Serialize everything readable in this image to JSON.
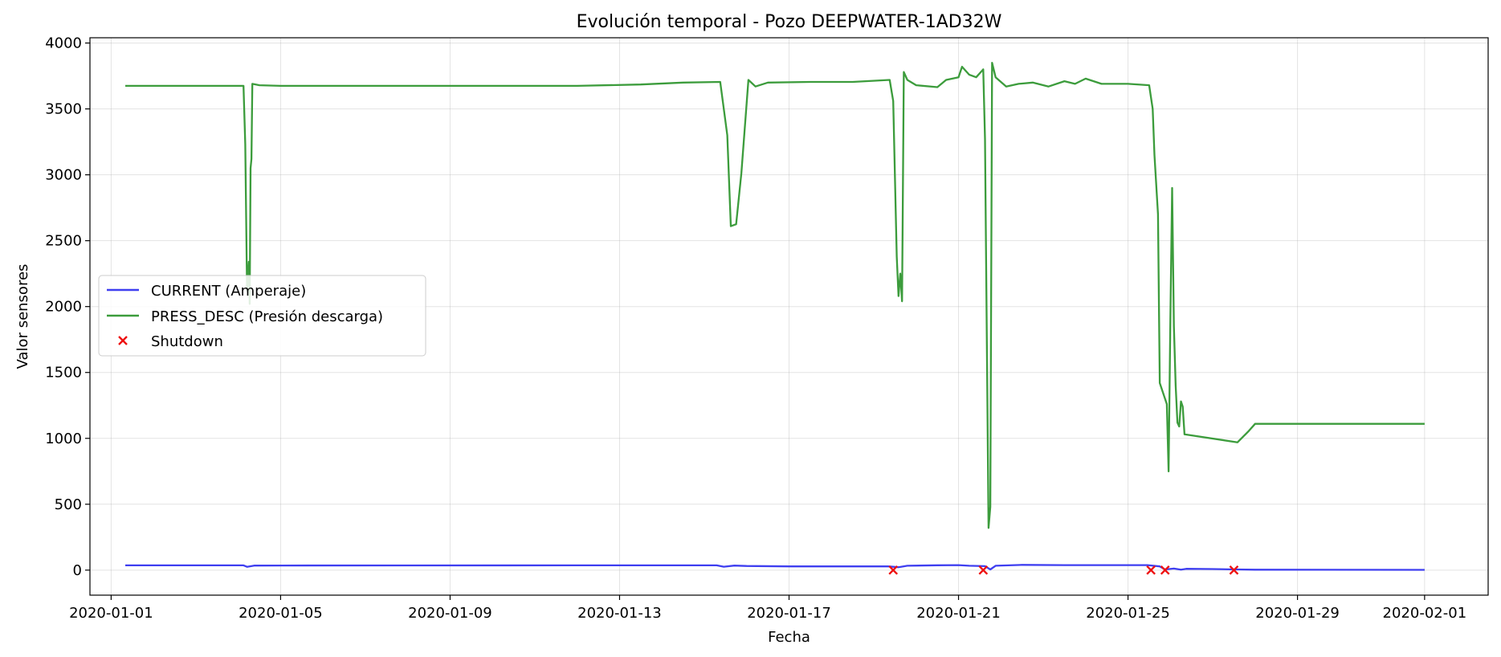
{
  "chart_data": {
    "type": "line",
    "title": "Evolución temporal - Pozo DEEPWATER-1AD32W",
    "xlabel": "Fecha",
    "ylabel": "Valor sensores",
    "xlim": [
      "2019-12-31T12:00",
      "2020-02-02T12:00"
    ],
    "ylim": [
      -190,
      4040
    ],
    "grid": true,
    "legend_position": "center-left",
    "x_ticks": [
      "2020-01-01",
      "2020-01-05",
      "2020-01-09",
      "2020-01-13",
      "2020-01-17",
      "2020-01-21",
      "2020-01-25",
      "2020-01-29",
      "2020-02-01"
    ],
    "y_ticks": [
      0,
      500,
      1000,
      1500,
      2000,
      2500,
      3000,
      3500,
      4000
    ],
    "series": [
      {
        "name": "CURRENT (Amperaje)",
        "color": "#3f3ff0",
        "points": [
          [
            "2020-01-01T08:00",
            36
          ],
          [
            "2020-01-04T03:00",
            36
          ],
          [
            "2020-01-04T05:00",
            25
          ],
          [
            "2020-01-04T09:00",
            34
          ],
          [
            "2020-01-05T00:00",
            35
          ],
          [
            "2020-01-12T00:00",
            36
          ],
          [
            "2020-01-15T07:00",
            36
          ],
          [
            "2020-01-15T11:00",
            26
          ],
          [
            "2020-01-15T17:00",
            34
          ],
          [
            "2020-01-16T00:00",
            31
          ],
          [
            "2020-01-17T00:00",
            28
          ],
          [
            "2020-01-19T08:00",
            28
          ],
          [
            "2020-01-19T14:00",
            22
          ],
          [
            "2020-01-19T19:00",
            33
          ],
          [
            "2020-01-20T12:00",
            37
          ],
          [
            "2020-01-21T00:00",
            38
          ],
          [
            "2020-01-21T06:00",
            33
          ],
          [
            "2020-01-21T15:00",
            30
          ],
          [
            "2020-01-21T18:00",
            5
          ],
          [
            "2020-01-21T21:00",
            33
          ],
          [
            "2020-01-22T12:00",
            40
          ],
          [
            "2020-01-23T12:00",
            38
          ],
          [
            "2020-01-25T11:00",
            38
          ],
          [
            "2020-01-25T18:00",
            28
          ],
          [
            "2020-01-25T21:00",
            5
          ],
          [
            "2020-01-26T02:00",
            12
          ],
          [
            "2020-01-26T06:00",
            3
          ],
          [
            "2020-01-26T09:00",
            10
          ],
          [
            "2020-01-27T00:00",
            8
          ],
          [
            "2020-01-27T14:00",
            5
          ],
          [
            "2020-01-28T00:00",
            3
          ],
          [
            "2020-02-01T00:00",
            2
          ]
        ]
      },
      {
        "name": "PRESS_DESC (Presión descarga)",
        "color": "#3c9c3c",
        "points": [
          [
            "2020-01-01T08:00",
            3675
          ],
          [
            "2020-01-04T03:00",
            3675
          ],
          [
            "2020-01-04T04:00",
            3230
          ],
          [
            "2020-01-04T05:00",
            2120
          ],
          [
            "2020-01-04T06:00",
            2340
          ],
          [
            "2020-01-04T06:30",
            2020
          ],
          [
            "2020-01-04T07:00",
            3050
          ],
          [
            "2020-01-04T07:30",
            3120
          ],
          [
            "2020-01-04T08:00",
            3690
          ],
          [
            "2020-01-04T12:00",
            3680
          ],
          [
            "2020-01-05T00:00",
            3675
          ],
          [
            "2020-01-08T00:00",
            3675
          ],
          [
            "2020-01-10T00:00",
            3675
          ],
          [
            "2020-01-12T00:00",
            3675
          ],
          [
            "2020-01-13T12:00",
            3685
          ],
          [
            "2020-01-14T12:00",
            3700
          ],
          [
            "2020-01-15T09:00",
            3705
          ],
          [
            "2020-01-15T13:00",
            3300
          ],
          [
            "2020-01-15T15:00",
            2610
          ],
          [
            "2020-01-15T18:00",
            2625
          ],
          [
            "2020-01-15T21:00",
            3010
          ],
          [
            "2020-01-16T01:00",
            3720
          ],
          [
            "2020-01-16T05:00",
            3670
          ],
          [
            "2020-01-16T12:00",
            3700
          ],
          [
            "2020-01-17T12:00",
            3705
          ],
          [
            "2020-01-18T12:00",
            3705
          ],
          [
            "2020-01-19T09:00",
            3720
          ],
          [
            "2020-01-19T11:00",
            3560
          ],
          [
            "2020-01-19T13:00",
            2380
          ],
          [
            "2020-01-19T14:00",
            2080
          ],
          [
            "2020-01-19T15:00",
            2250
          ],
          [
            "2020-01-19T16:00",
            2040
          ],
          [
            "2020-01-19T17:00",
            3780
          ],
          [
            "2020-01-19T19:00",
            3720
          ],
          [
            "2020-01-20T00:00",
            3680
          ],
          [
            "2020-01-20T12:00",
            3665
          ],
          [
            "2020-01-20T17:00",
            3720
          ],
          [
            "2020-01-21T00:00",
            3740
          ],
          [
            "2020-01-21T02:00",
            3820
          ],
          [
            "2020-01-21T06:00",
            3760
          ],
          [
            "2020-01-21T10:00",
            3740
          ],
          [
            "2020-01-21T14:00",
            3800
          ],
          [
            "2020-01-21T15:00",
            3270
          ],
          [
            "2020-01-21T17:00",
            320
          ],
          [
            "2020-01-21T18:00",
            480
          ],
          [
            "2020-01-21T19:00",
            3850
          ],
          [
            "2020-01-21T21:00",
            3740
          ],
          [
            "2020-01-22T03:00",
            3670
          ],
          [
            "2020-01-22T10:00",
            3690
          ],
          [
            "2020-01-22T18:00",
            3700
          ],
          [
            "2020-01-23T03:00",
            3670
          ],
          [
            "2020-01-23T12:00",
            3710
          ],
          [
            "2020-01-23T18:00",
            3690
          ],
          [
            "2020-01-24T00:00",
            3730
          ],
          [
            "2020-01-24T09:00",
            3690
          ],
          [
            "2020-01-25T00:00",
            3690
          ],
          [
            "2020-01-25T12:00",
            3680
          ],
          [
            "2020-01-25T14:00",
            3500
          ],
          [
            "2020-01-25T15:00",
            3150
          ],
          [
            "2020-01-25T17:00",
            2700
          ],
          [
            "2020-01-25T18:00",
            1420
          ],
          [
            "2020-01-25T22:00",
            1260
          ],
          [
            "2020-01-25T23:00",
            750
          ],
          [
            "2020-01-26T00:00",
            1900
          ],
          [
            "2020-01-26T01:00",
            2900
          ],
          [
            "2020-01-26T02:00",
            1850
          ],
          [
            "2020-01-26T03:00",
            1400
          ],
          [
            "2020-01-26T04:00",
            1120
          ],
          [
            "2020-01-26T05:00",
            1090
          ],
          [
            "2020-01-26T06:00",
            1280
          ],
          [
            "2020-01-26T07:00",
            1240
          ],
          [
            "2020-01-26T08:00",
            1030
          ],
          [
            "2020-01-27T14:00",
            970
          ],
          [
            "2020-01-27T20:00",
            1050
          ],
          [
            "2020-01-28T00:00",
            1110
          ],
          [
            "2020-02-01T00:00",
            1110
          ]
        ]
      }
    ],
    "markers": {
      "name": "Shutdown",
      "color": "#ee1111",
      "symbol": "x",
      "points": [
        [
          "2020-01-19T11:00",
          0
        ],
        [
          "2020-01-21T14:00",
          0
        ],
        [
          "2020-01-25T13:00",
          0
        ],
        [
          "2020-01-25T21:00",
          0
        ],
        [
          "2020-01-27T12:00",
          0
        ]
      ]
    }
  }
}
